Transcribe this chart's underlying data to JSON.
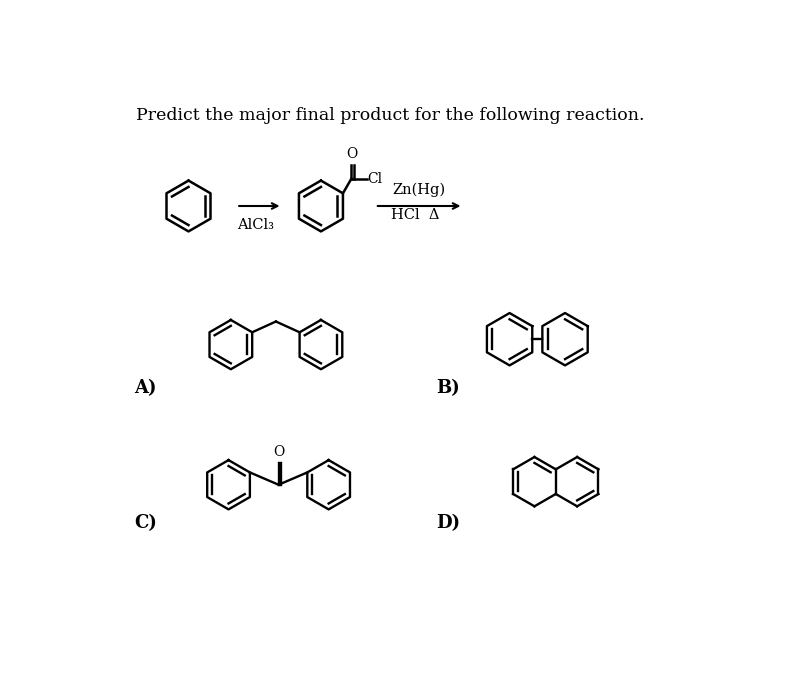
{
  "title": "Predict the major final product for the following reaction.",
  "title_fontsize": 12.5,
  "background_color": "#ffffff",
  "text_color": "#000000",
  "reagent1_text": "Zn(Hg)",
  "reagent2_text": "HCl  Δ",
  "catalyst_text": "AlCl₃",
  "label_A": "A)",
  "label_B": "B)",
  "label_C": "C)",
  "label_D": "D)"
}
